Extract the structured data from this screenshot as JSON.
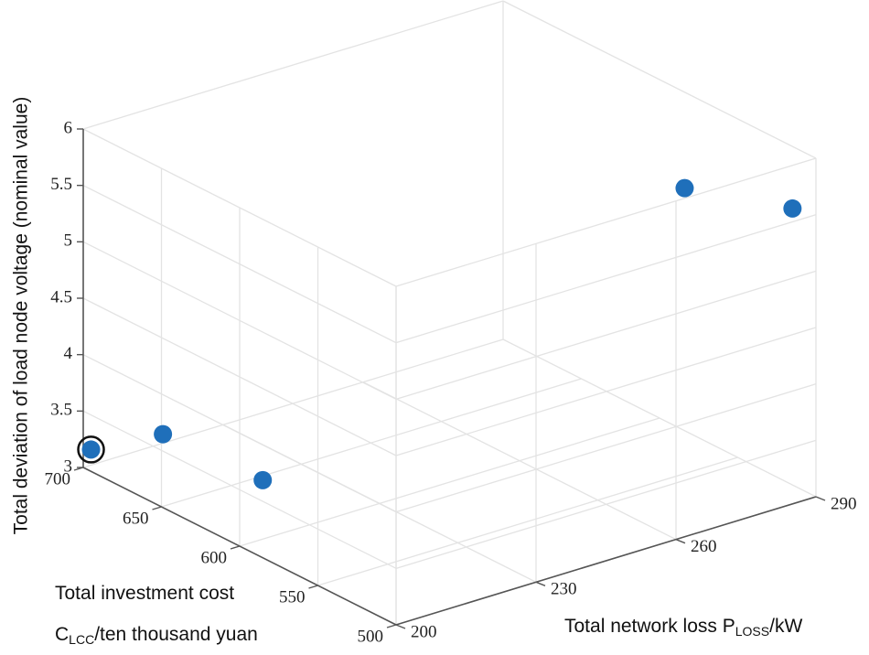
{
  "chart_data": {
    "type": "scatter",
    "title": "",
    "xlabel": "Total network loss P",
    "xlabel_sub": "LOSS",
    "xlabel_tail": "/kW",
    "ylabel_line1": "Total investment cost",
    "ylabel_line2_prefix": "C",
    "ylabel_line2_sub": "LCC",
    "ylabel_line2_tail": "/ten thousand yuan",
    "zlabel": "Total deviation of load node voltage (nominal value)",
    "xlim": [
      200,
      290
    ],
    "ylim": [
      500,
      700
    ],
    "zlim": [
      3,
      6
    ],
    "x_ticks": [
      "200",
      "230",
      "260",
      "290"
    ],
    "y_ticks": [
      "500",
      "550",
      "600",
      "650",
      "700"
    ],
    "z_ticks": [
      "3",
      "3.5",
      "4",
      "4.5",
      "5",
      "5.5",
      "6"
    ],
    "grid": true,
    "marker_color": "#1f6fba",
    "highlight_color": "#111111",
    "points": [
      {
        "x": 201,
        "y": 698,
        "z": 3.16,
        "highlight": true
      },
      {
        "x": 203,
        "y": 658,
        "z": 3.55,
        "highlight": false
      },
      {
        "x": 214,
        "y": 627,
        "z": 3.22,
        "highlight": false
      },
      {
        "x": 287,
        "y": 575,
        "z": 5.25,
        "highlight": false
      },
      {
        "x": 290,
        "y": 515,
        "z": 5.45,
        "highlight": false
      }
    ]
  }
}
